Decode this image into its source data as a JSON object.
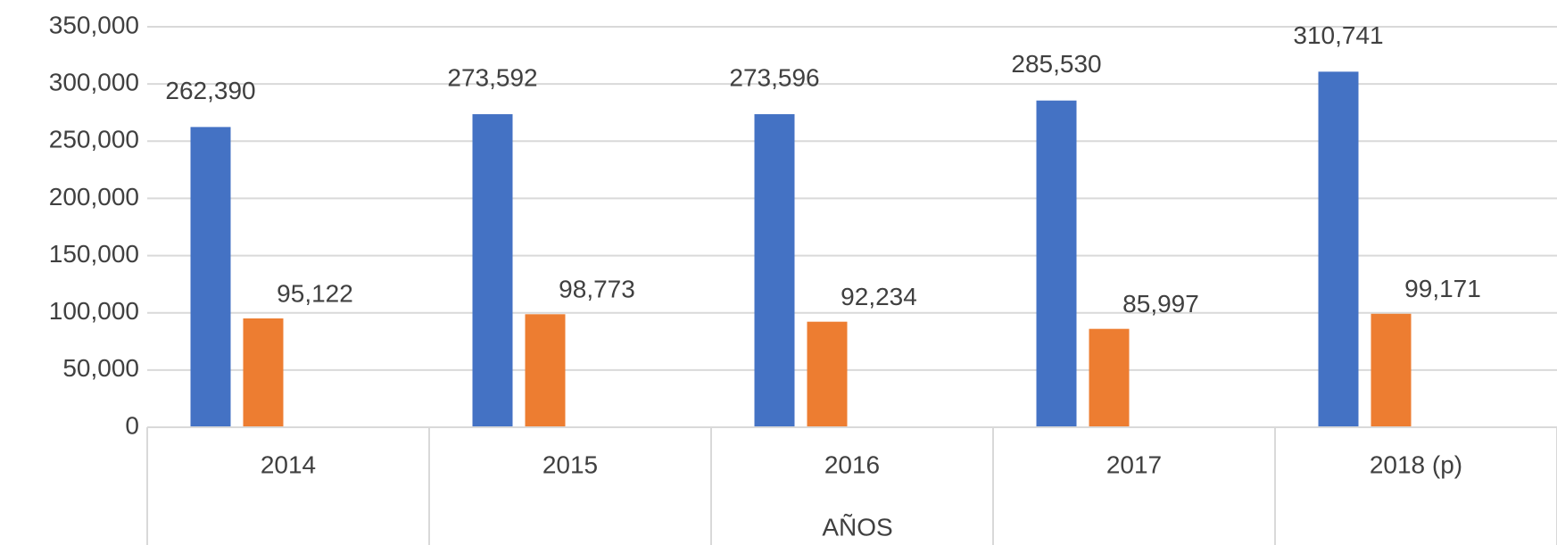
{
  "chart_data": {
    "type": "bar",
    "x_label": "AÑOS",
    "categories": [
      "2014",
      "2015",
      "2016",
      "2017",
      "2018 (p)"
    ],
    "series": [
      {
        "color": "#4472c4",
        "values": [
          262390,
          273592,
          273596,
          285530,
          310741
        ],
        "value_labels": [
          "262,390",
          "273,592",
          "273,596",
          "285,530",
          "310,741"
        ]
      },
      {
        "color": "#ed7d31",
        "values": [
          95122,
          98773,
          92234,
          85997,
          99171
        ],
        "value_labels": [
          "95,122",
          "98,773",
          "92,234",
          "85,997",
          "99,171"
        ]
      }
    ],
    "ylim": [
      0,
      350000
    ],
    "yticks": [
      0,
      {
        "value": 50000,
        "label": "50,000"
      },
      {
        "value": 100000,
        "label": "100,000"
      },
      {
        "value": 150000,
        "label": "150,000"
      },
      {
        "value": 200000,
        "label": "200,000"
      },
      {
        "value": 250000,
        "label": "250,000"
      },
      {
        "value": 300000,
        "label": "300,000"
      },
      {
        "value": 350000,
        "label": "350,000"
      }
    ],
    "grid": true
  }
}
